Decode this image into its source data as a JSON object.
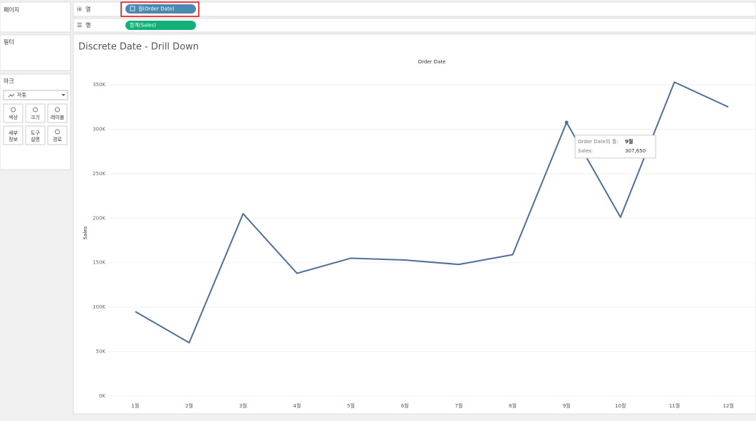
{
  "ui": {
    "pages": "페이지",
    "filters": "필터",
    "marks": "마크",
    "mark_type": "자동",
    "mark_buttons": [
      "색상",
      "크기",
      "레이블",
      "세부 정보",
      "도구 설명",
      "경로"
    ],
    "columns_label": "열",
    "rows_label": "행",
    "columns_pill": "월(Order Date)",
    "rows_pill": "합계(Sales)"
  },
  "chart_data": {
    "type": "line",
    "title": "Discrete Date - Drill Down",
    "x_label": "Order Date",
    "y_label": "Sales",
    "categories": [
      "1월",
      "2월",
      "3월",
      "4월",
      "5월",
      "6월",
      "7월",
      "8월",
      "9월",
      "10월",
      "11월",
      "12월"
    ],
    "values": [
      95000,
      60000,
      205000,
      138000,
      155000,
      153000,
      148000,
      159000,
      307650,
      201000,
      353000,
      325000
    ],
    "value_labels": [
      null,
      null,
      null,
      null,
      null,
      null,
      null,
      null,
      "307,650",
      null,
      null,
      null
    ],
    "color": "#4e6f98",
    "ylim": [
      0,
      350000
    ],
    "yticks": [
      {
        "value": 0,
        "label": "0K"
      },
      {
        "value": 50000,
        "label": "50K"
      },
      {
        "value": 100000,
        "label": "100K"
      },
      {
        "value": 150000,
        "label": "150K"
      },
      {
        "value": 200000,
        "label": "200K"
      },
      {
        "value": 250000,
        "label": "250K"
      },
      {
        "value": 300000,
        "label": "300K"
      },
      {
        "value": 350000,
        "label": "350K"
      }
    ],
    "grid": true,
    "tooltip": {
      "date_label": "Order Date의 월:",
      "value_name": "Sales:"
    }
  }
}
